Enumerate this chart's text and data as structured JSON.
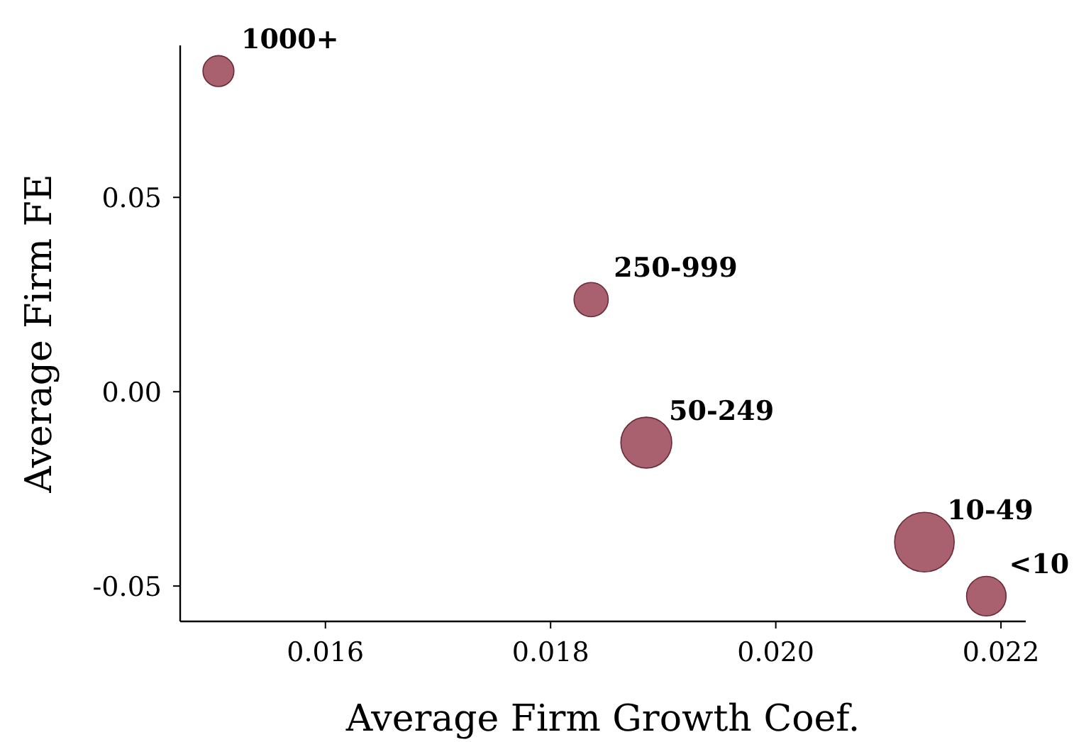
{
  "chart_data": {
    "type": "bubble",
    "xlabel": "Average Firm Growth Coef.",
    "ylabel": "Average Firm FE",
    "xlim": [
      0.01471,
      0.02222
    ],
    "ylim": [
      -0.0591,
      0.0891
    ],
    "xticks": [
      0.016,
      0.018,
      {
        "value": 0.02,
        "label": "0.020"
      },
      0.022
    ],
    "yticks": [
      {
        "value": -0.05,
        "label": "-0.05"
      },
      {
        "value": 0,
        "label": "0.00"
      },
      0.05
    ],
    "grid": false,
    "marker": "circle",
    "series": [
      {
        "color": "#a0505f",
        "x": [
          0.01505,
          0.01836,
          0.01885,
          0.02132,
          0.02187
        ],
        "values": [
          0.0825,
          0.0237,
          -0.0131,
          -0.0387,
          -0.0526
        ],
        "sizes": [
          0.27,
          0.33,
          0.73,
          1,
          0.44
        ]
      }
    ],
    "annotations": [
      {
        "text": "1000+",
        "x": 0.01505,
        "y": 0.0825
      },
      {
        "text": "250-999",
        "x": 0.01836,
        "y": 0.0237
      },
      {
        "text": "50-249",
        "x": 0.01885,
        "y": -0.0131
      },
      {
        "text": "10-49",
        "x": 0.02132,
        "y": -0.0387
      },
      {
        "text": "<10",
        "x": 0.02187,
        "y": -0.0526
      }
    ]
  }
}
